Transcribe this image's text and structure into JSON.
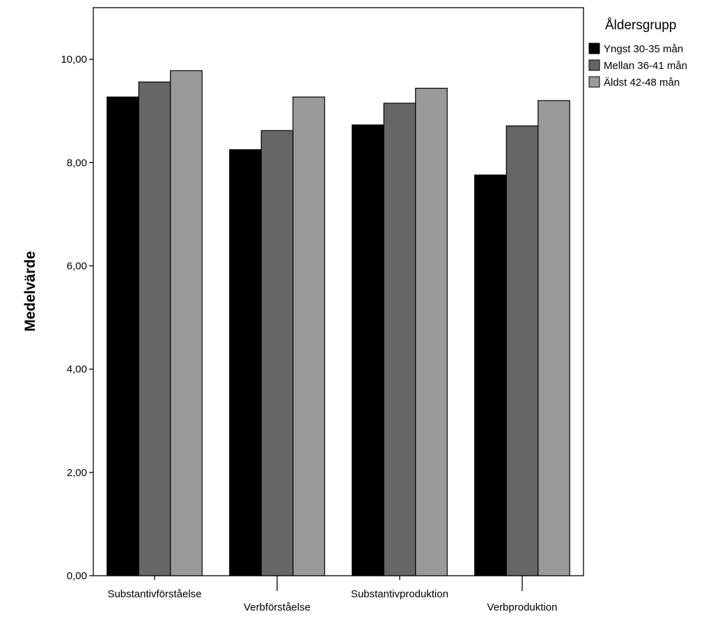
{
  "chart_data": {
    "type": "bar",
    "ylabel": "Medelvärde",
    "xlabel": "",
    "ylim": [
      0,
      11
    ],
    "yticks": [
      0,
      2,
      4,
      6,
      8,
      10
    ],
    "ytick_labels": [
      "0,00",
      "2,00",
      "4,00",
      "6,00",
      "8,00",
      "10,00"
    ],
    "categories": [
      "Substantivförståelse",
      "Verbförståelse",
      "Substantivproduktion",
      "Verbproduktion"
    ],
    "legend_title": "Åldersgrupp",
    "legend_position": "top-right, outside plot",
    "grid": false,
    "series": [
      {
        "name": "Yngst 30-35 mån",
        "color": "#000000",
        "values": [
          9.27,
          8.25,
          8.73,
          7.76
        ]
      },
      {
        "name": "Mellan 36-41 mån",
        "color": "#666666",
        "values": [
          9.56,
          8.62,
          9.15,
          8.71
        ]
      },
      {
        "name": "Äldst 42-48 mån",
        "color": "#999999",
        "values": [
          9.78,
          9.27,
          9.44,
          9.2
        ]
      }
    ]
  }
}
